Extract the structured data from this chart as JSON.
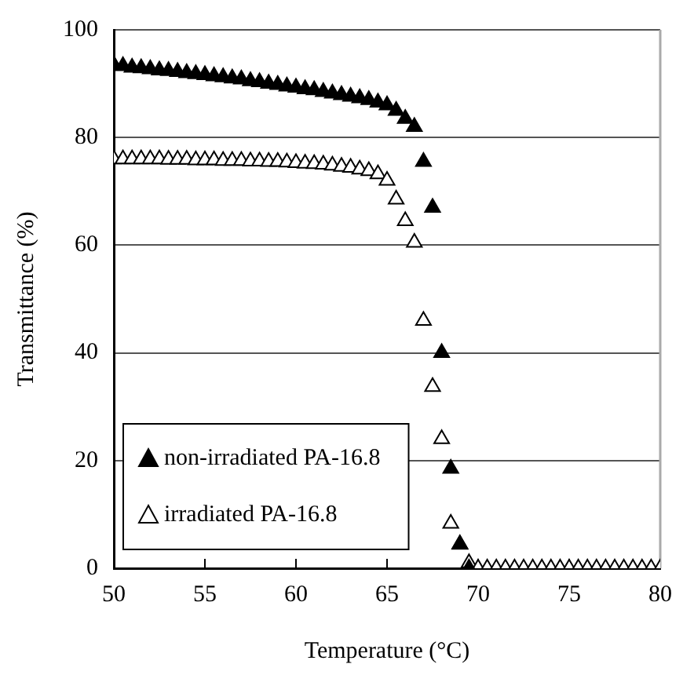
{
  "chart_data": {
    "type": "scatter",
    "xlabel": "Temperature (°C)",
    "ylabel": "Transmittance (%)",
    "xlim": [
      50,
      80
    ],
    "xticks": [
      50,
      55,
      60,
      65,
      70,
      75,
      80
    ],
    "ylim": [
      0,
      100
    ],
    "yticks": [
      0,
      20,
      40,
      60,
      80,
      100
    ],
    "grid": "y",
    "legend": "bottom left",
    "marker": "triangle",
    "series": [
      {
        "name": "non-irradiated PA-16.8",
        "color": "#000000",
        "x": [
          50,
          50.5,
          51,
          51.5,
          52,
          52.5,
          53,
          53.5,
          54,
          54.5,
          55,
          55.5,
          56,
          56.5,
          57,
          57.5,
          58,
          58.5,
          59,
          59.5,
          60,
          60.5,
          61,
          61.5,
          62,
          62.5,
          63,
          63.5,
          64,
          64.5,
          65,
          65.5,
          66,
          66.5,
          67,
          67.5,
          68,
          68.5,
          69,
          69.5
        ],
        "values": [
          93.5,
          93.3,
          93,
          92.9,
          92.7,
          92.5,
          92.4,
          92.2,
          92,
          91.8,
          91.6,
          91.4,
          91.2,
          91,
          90.8,
          90.5,
          90.3,
          90,
          89.8,
          89.5,
          89.3,
          89,
          88.8,
          88.5,
          88.2,
          87.9,
          87.6,
          87.3,
          87,
          86.5,
          86,
          85,
          83.5,
          82,
          75.5,
          67,
          40,
          18.5,
          4.5,
          0
        ]
      },
      {
        "name": "irradiated PA-16.8",
        "color": "#ffffff",
        "x": [
          50,
          50.5,
          51,
          51.5,
          52,
          52.5,
          53,
          53.5,
          54,
          54.5,
          55,
          55.5,
          56,
          56.5,
          57,
          57.5,
          58,
          58.5,
          59,
          59.5,
          60,
          60.5,
          61,
          61.5,
          62,
          62.5,
          63,
          63.5,
          64,
          64.5,
          65,
          65.5,
          66,
          66.5,
          67,
          67.5,
          68,
          68.5,
          69,
          69.5,
          70,
          70.5,
          71,
          71.5,
          72,
          72.5,
          73,
          73.5,
          74,
          74.5,
          75,
          75.5,
          76,
          76.5,
          77,
          77.5,
          78,
          78.5,
          79,
          79.5,
          80
        ],
        "values": [
          76,
          76,
          76,
          76,
          76,
          76,
          75.9,
          75.9,
          75.9,
          75.8,
          75.8,
          75.8,
          75.7,
          75.7,
          75.7,
          75.6,
          75.6,
          75.5,
          75.5,
          75.4,
          75.3,
          75.2,
          75.1,
          75,
          74.8,
          74.6,
          74.4,
          74.1,
          73.8,
          73.2,
          72,
          68.5,
          64.5,
          60.5,
          46,
          33.7,
          24,
          8.3,
          4.4,
          1,
          0,
          0,
          0,
          0,
          0,
          0,
          0,
          0,
          0,
          0,
          0,
          0,
          0,
          0,
          0,
          0,
          0,
          0,
          0,
          0,
          0
        ]
      }
    ]
  }
}
